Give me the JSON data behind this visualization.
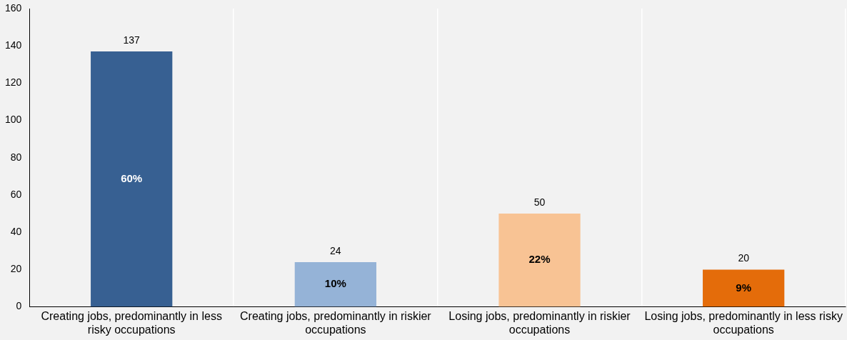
{
  "chart_data": {
    "type": "bar",
    "categories": [
      "Creating jobs, predominantly in less risky occupations",
      "Creating jobs, predominantly in riskier occupations",
      "Losing jobs, predominantly in riskier occupations",
      "Losing jobs, predominantly in less risky occupations"
    ],
    "values": [
      137,
      24,
      50,
      20
    ],
    "colors": [
      "#376092",
      "#95b3d7",
      "#f8c394",
      "#e46c0a"
    ],
    "ylim": [
      0,
      160
    ],
    "yticks": [
      0,
      20,
      40,
      60,
      80,
      100,
      120,
      140,
      160
    ],
    "grid": "x",
    "data_labels": true,
    "annotations": [
      "60%",
      "10%",
      "22%",
      "9%"
    ]
  }
}
